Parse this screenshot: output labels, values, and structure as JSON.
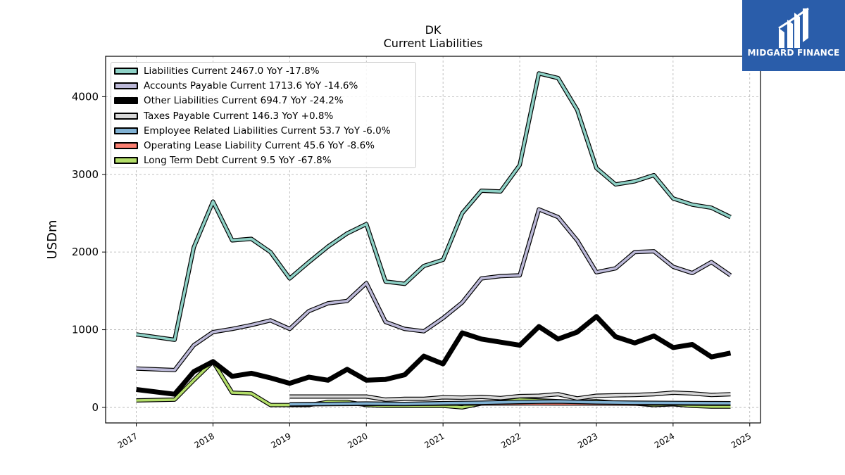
{
  "title": "DK",
  "subtitle": "Current  Liabilities",
  "logo": {
    "brand": "MIDGARD FINANCE",
    "icon": "midgard-m-icon",
    "background": "#2a5daa"
  },
  "chart_data": {
    "type": "line",
    "ylabel": "USDm",
    "xlabel": "",
    "ylim": [
      -200,
      4520
    ],
    "xlim": [
      2016.6,
      2025.14
    ],
    "yticks": [
      0,
      1000,
      2000,
      3000,
      4000
    ],
    "xticks": [
      2017,
      2018,
      2019,
      2020,
      2021,
      2022,
      2023,
      2024,
      2025
    ],
    "grid": true,
    "legend_position": "top-left",
    "series": [
      {
        "name": "Liabilities Current",
        "legend": "Liabilities Current  2467.0 YoY -17.8%",
        "color": "#8ed1c6",
        "x": [
          2017.0,
          2017.5,
          2017.75,
          2018.0,
          2018.25,
          2018.5,
          2018.75,
          2019.0,
          2019.25,
          2019.5,
          2019.75,
          2020.0,
          2020.25,
          2020.5,
          2020.75,
          2021.0,
          2021.25,
          2021.5,
          2021.75,
          2022.0,
          2022.25,
          2022.5,
          2022.75,
          2023.0,
          2023.25,
          2023.5,
          2023.75,
          2024.0,
          2024.25,
          2024.5,
          2024.75
        ],
        "values": [
          940,
          870,
          2060,
          2650,
          2150,
          2170,
          2000,
          1660,
          1870,
          2070,
          2240,
          2360,
          1620,
          1590,
          1820,
          1900,
          2500,
          2790,
          2780,
          3120,
          4300,
          4240,
          3830,
          3080,
          2870,
          2910,
          2990,
          2690,
          2610,
          2570,
          2450
        ]
      },
      {
        "name": "Accounts Payable Current",
        "legend": "Accounts Payable Current  1713.6 YoY -14.6%",
        "color": "#bcb9d8",
        "x": [
          2017.0,
          2017.5,
          2017.75,
          2018.0,
          2018.25,
          2018.5,
          2018.75,
          2019.0,
          2019.25,
          2019.5,
          2019.75,
          2020.0,
          2020.25,
          2020.5,
          2020.75,
          2021.0,
          2021.25,
          2021.5,
          2021.75,
          2022.0,
          2022.25,
          2022.5,
          2022.75,
          2023.0,
          2023.25,
          2023.5,
          2023.75,
          2024.0,
          2024.25,
          2024.5,
          2024.75
        ],
        "values": [
          500,
          480,
          800,
          970,
          1010,
          1060,
          1120,
          1010,
          1240,
          1340,
          1370,
          1600,
          1100,
          1010,
          980,
          1150,
          1350,
          1660,
          1690,
          1700,
          2550,
          2450,
          2150,
          1740,
          1790,
          2000,
          2010,
          1810,
          1730,
          1870,
          1700
        ]
      },
      {
        "name": "Other Liabilities Current",
        "legend": "Other Liabilities Current  694.7 YoY -24.2%",
        "color": "#000000",
        "x": [
          2017.0,
          2017.5,
          2017.75,
          2018.0,
          2018.25,
          2018.5,
          2018.75,
          2019.0,
          2019.25,
          2019.5,
          2019.75,
          2020.0,
          2020.25,
          2020.5,
          2020.75,
          2021.0,
          2021.25,
          2021.5,
          2021.75,
          2022.0,
          2022.25,
          2022.5,
          2022.75,
          2023.0,
          2023.25,
          2023.5,
          2023.75,
          2024.0,
          2024.25,
          2024.5,
          2024.75
        ],
        "values": [
          230,
          170,
          460,
          590,
          400,
          440,
          380,
          310,
          390,
          350,
          490,
          350,
          360,
          420,
          660,
          560,
          960,
          880,
          840,
          800,
          1040,
          880,
          970,
          1170,
          910,
          830,
          920,
          770,
          810,
          650,
          700
        ]
      },
      {
        "name": "Taxes Payable Current",
        "legend": "Taxes Payable Current  146.3 YoY +0.8%",
        "color": "#d9d9d9",
        "x": [
          2019.0,
          2019.25,
          2019.5,
          2019.75,
          2020.0,
          2020.25,
          2020.5,
          2020.75,
          2021.0,
          2021.25,
          2021.5,
          2021.75,
          2022.0,
          2022.25,
          2022.5,
          2022.75,
          2023.0,
          2023.25,
          2023.5,
          2023.75,
          2024.0,
          2024.25,
          2024.5,
          2024.75
        ],
        "values": [
          140,
          140,
          140,
          140,
          140,
          100,
          110,
          110,
          130,
          125,
          135,
          120,
          145,
          150,
          170,
          115,
          150,
          155,
          160,
          170,
          190,
          180,
          160,
          170
        ]
      },
      {
        "name": "Employee Related Liabilities Current",
        "legend": "Employee Related Liabilities Current  53.7 YoY -6.0%",
        "color": "#80b1d3",
        "x": [
          2019.0,
          2019.5,
          2020.0,
          2020.5,
          2021.0,
          2021.5,
          2022.0,
          2022.5,
          2023.0,
          2023.5,
          2024.0,
          2024.5,
          2024.75
        ],
        "values": [
          40,
          45,
          50,
          45,
          55,
          60,
          70,
          75,
          65,
          60,
          57,
          55,
          54
        ]
      },
      {
        "name": "Operating Lease Liability Current",
        "legend": "Operating Lease Liability Current  45.6 YoY -8.6%",
        "color": "#fb8072",
        "x": [
          2019.0,
          2019.5,
          2020.0,
          2020.5,
          2021.0,
          2021.5,
          2022.0,
          2022.5,
          2023.0,
          2023.5,
          2024.0,
          2024.5,
          2024.75
        ],
        "values": [
          40,
          42,
          45,
          44,
          48,
          50,
          52,
          50,
          50,
          48,
          50,
          47,
          46
        ]
      },
      {
        "name": "Long Term Debt Current",
        "legend": "Long Term Debt Current  9.5 YoY -67.8%",
        "color": "#b3de69",
        "x": [
          2017.0,
          2017.5,
          2017.75,
          2018.0,
          2018.25,
          2018.5,
          2018.75,
          2019.0,
          2019.25,
          2019.5,
          2019.75,
          2020.0,
          2020.25,
          2020.5,
          2020.75,
          2021.0,
          2021.25,
          2021.5,
          2021.75,
          2022.0,
          2022.25,
          2022.5,
          2022.75,
          2023.0,
          2023.25,
          2023.5,
          2023.75,
          2024.0,
          2024.25,
          2024.5,
          2024.75
        ],
        "values": [
          90,
          100,
          350,
          590,
          190,
          180,
          30,
          30,
          30,
          70,
          70,
          30,
          20,
          20,
          20,
          20,
          0,
          50,
          70,
          100,
          90,
          80,
          70,
          80,
          60,
          50,
          30,
          40,
          20,
          10,
          10
        ]
      }
    ]
  }
}
